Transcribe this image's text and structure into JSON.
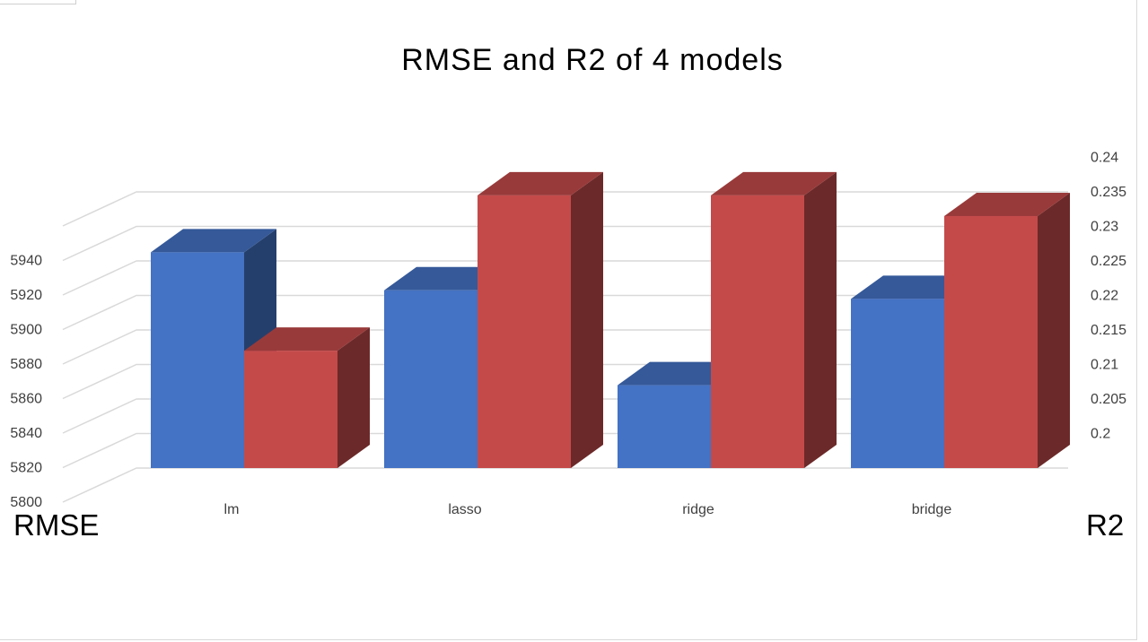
{
  "chart_data": {
    "type": "bar",
    "title": "RMSE and R2 of 4 models",
    "categories": [
      "lm",
      "lasso",
      "ridge",
      "bridge"
    ],
    "series": [
      {
        "axis": "left",
        "color": "#4472c4",
        "values": [
          5925,
          5903,
          5848,
          5898
        ]
      },
      {
        "axis": "right",
        "color": "#c44a4a",
        "values": [
          0.212,
          0.2345,
          0.2345,
          0.2315
        ]
      }
    ],
    "left_axis": {
      "title": "RMSE",
      "ylim": [
        5800,
        5940
      ],
      "ticks": [
        "5800",
        "5820",
        "5840",
        "5860",
        "5880",
        "5900",
        "5920",
        "5940"
      ]
    },
    "right_axis": {
      "title": "R2",
      "ylim": [
        0.195,
        0.24
      ],
      "ticks": [
        "0.2",
        "0.205",
        "0.21",
        "0.215",
        "0.22",
        "0.225",
        "0.23",
        "0.235",
        "0.24"
      ]
    },
    "grid": true,
    "style": "3d-clustered"
  }
}
